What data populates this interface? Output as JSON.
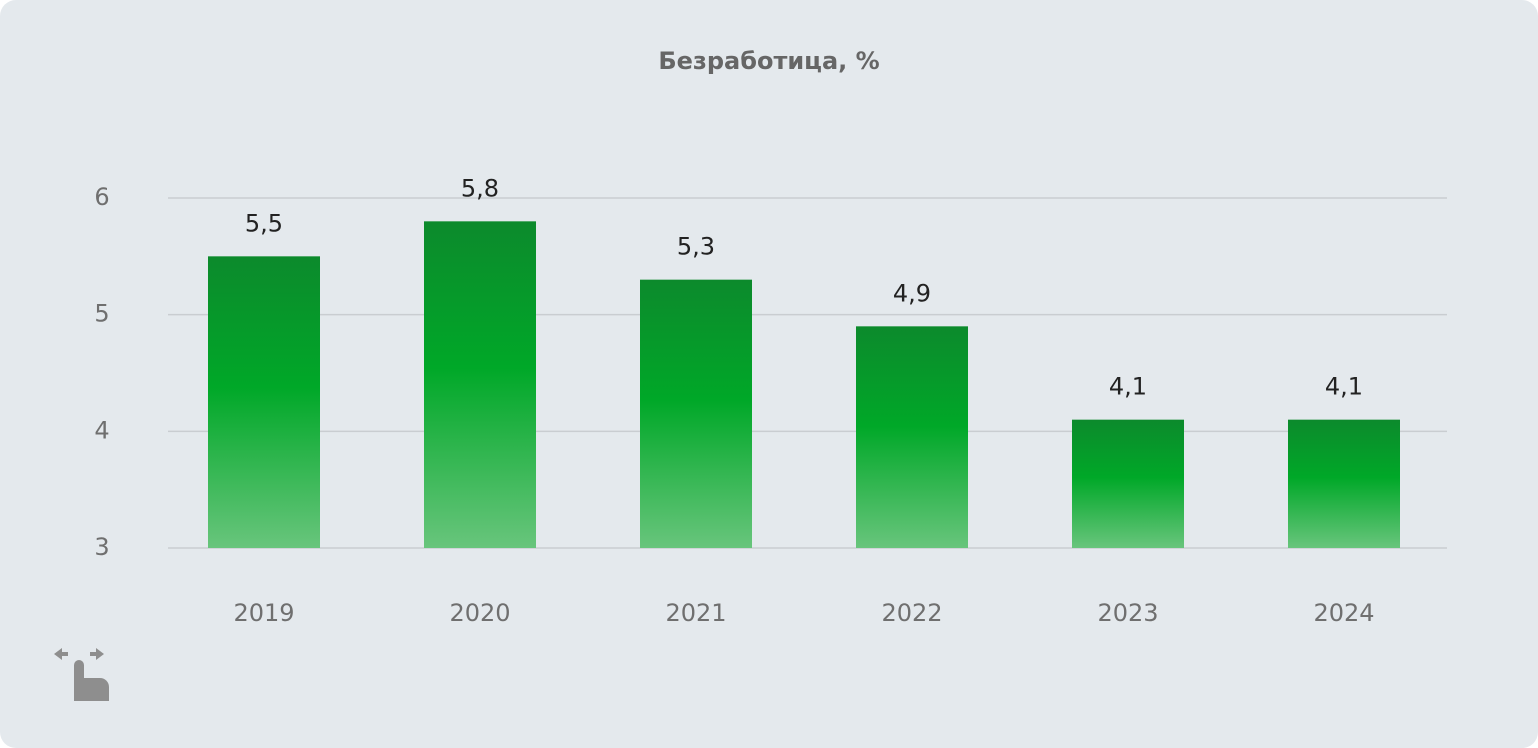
{
  "chart_data": {
    "type": "bar",
    "title": "Безработица, %",
    "categories": [
      "2019",
      "2020",
      "2021",
      "2022",
      "2023",
      "2024"
    ],
    "values": [
      5.5,
      5.8,
      5.3,
      4.9,
      4.1,
      4.1
    ],
    "value_labels": [
      "5,5",
      "5,8",
      "5,3",
      "4,9",
      "4,1",
      "4,1"
    ],
    "color": "#00a828",
    "ylim": [
      3,
      6
    ],
    "yticks": [
      3,
      4,
      5,
      6
    ],
    "grid": true
  }
}
